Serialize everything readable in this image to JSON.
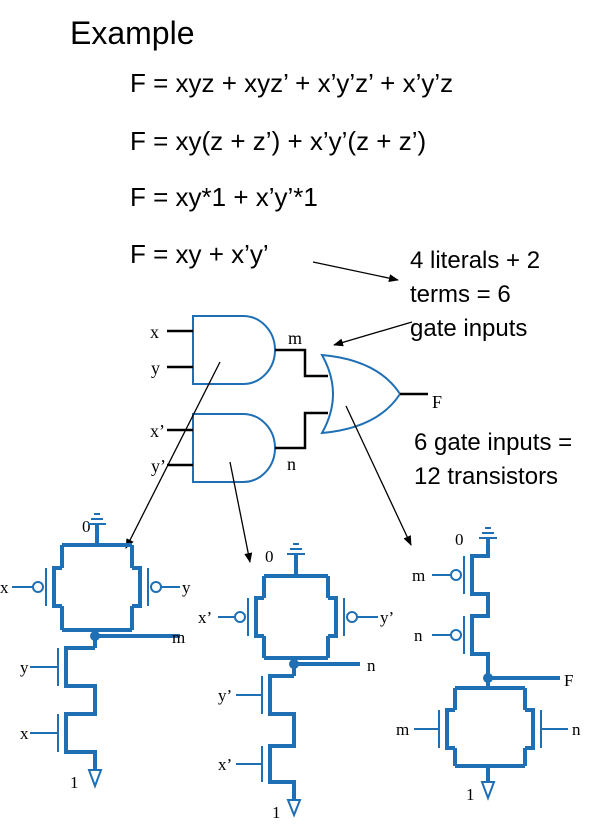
{
  "title": "Example",
  "equations": [
    "F = xyz + xyz’ + x’y’z’ + x’y’z",
    "F = xy(z + z’) + x’y’(z + z’)",
    "F = xy*1 + x’y’*1",
    "F = xy + x’y’"
  ],
  "note_literals": [
    "4 literals + 2",
    "terms = 6",
    "gate inputs"
  ],
  "note_transistors": [
    "6 gate inputs =",
    "12 transistors"
  ],
  "gates": {
    "and1_inputs": [
      "x",
      "y"
    ],
    "and2_inputs": [
      "x’",
      "y’"
    ],
    "and1_output": "m",
    "and2_output": "n",
    "or_output": "F"
  },
  "cmos1": {
    "vdd": "0",
    "p_left": "x",
    "p_right": "y",
    "out": "m",
    "n_top": "y",
    "n_bottom": "x",
    "gnd": "1"
  },
  "cmos2": {
    "vdd": "0",
    "p_left": "x’",
    "p_right": "y’",
    "out": "n",
    "n_top": "y’",
    "n_bottom": "x’",
    "gnd": "1"
  },
  "cmos3": {
    "vdd": "0",
    "p_top": "m",
    "p_bottom": "n",
    "out": "F",
    "n_left": "m",
    "n_right": "n",
    "gnd": "1"
  },
  "colors": {
    "circuit": "#1f6fb5",
    "text": "#000000"
  }
}
